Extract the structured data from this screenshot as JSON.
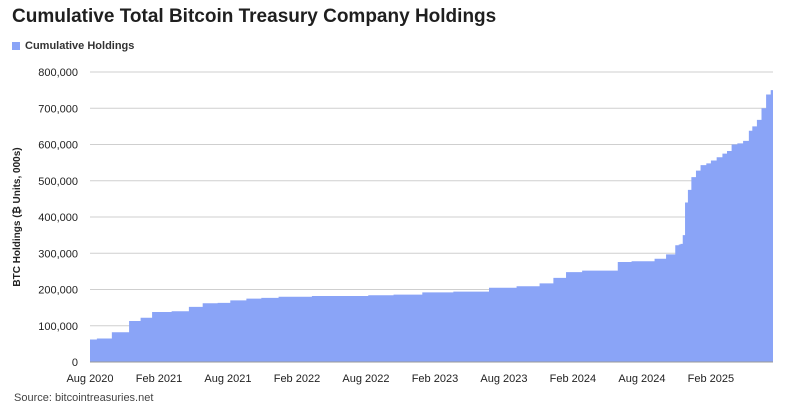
{
  "chart_data": {
    "type": "area",
    "title": "Cumulative Total Bitcoin Treasury Company Holdings",
    "legend": [
      "Cumulative Holdings"
    ],
    "xlabel": "",
    "ylabel": "BTC Holdings (₿ Units, 000s)",
    "ylim": [
      0,
      800000
    ],
    "yticks": [
      "0",
      "100,000",
      "200,000",
      "300,000",
      "400,000",
      "500,000",
      "600,000",
      "700,000",
      "800,000"
    ],
    "xticks": [
      "Aug 2020",
      "Feb 2021",
      "Aug 2021",
      "Feb 2022",
      "Aug 2022",
      "Feb 2023",
      "Aug 2023",
      "Feb 2024",
      "Aug 2024",
      "Feb 2025"
    ],
    "grid": true,
    "color": "#8aa4f7",
    "series": [
      {
        "name": "Cumulative Holdings",
        "x_months": [
          0,
          0.6,
          1.9,
          2.3,
          3.4,
          4.4,
          5.4,
          6.0,
          7.1,
          8.6,
          9.8,
          11.1,
          12.2,
          13.6,
          14.9,
          16.4,
          19.3,
          24.2,
          26.4,
          28.9,
          31.6,
          34.7,
          37.1,
          39.1,
          40.3,
          41.4,
          42.8,
          45.9,
          47.1,
          49.1,
          50.1,
          50.9,
          51.2,
          51.35,
          51.55,
          51.75,
          52.0,
          52.3,
          52.7,
          53.1,
          53.6,
          54.0,
          54.5,
          55.0,
          55.4,
          55.8,
          56.3,
          56.8,
          57.3,
          57.6,
          58.0,
          58.4,
          58.8,
          59.2
        ],
        "values": [
          62000,
          65000,
          82000,
          82000,
          113000,
          122000,
          138000,
          138000,
          140000,
          152000,
          162000,
          163000,
          170000,
          175000,
          177000,
          180000,
          182000,
          184000,
          186000,
          192000,
          194000,
          205000,
          209000,
          217000,
          232000,
          248000,
          252000,
          276000,
          278000,
          285000,
          297000,
          322000,
          324000,
          326000,
          350000,
          440000,
          475000,
          510000,
          528000,
          543000,
          548000,
          556000,
          565000,
          575000,
          582000,
          600000,
          603000,
          610000,
          638000,
          650000,
          668000,
          700000,
          738000,
          750000
        ]
      }
    ]
  },
  "source": "Source: bitcointreasuries.net"
}
